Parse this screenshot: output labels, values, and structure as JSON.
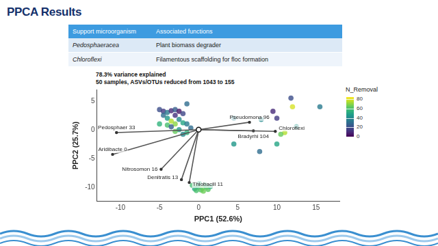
{
  "slide_title": "PPCA Results",
  "table": {
    "header": [
      "Support microorganism",
      "Associated functions"
    ],
    "rows": [
      [
        "Pedosphaeracea",
        "Plant biomass degrader"
      ],
      [
        "Chloroflexi",
        "Filamentous scaffolding for floc formation"
      ]
    ]
  },
  "chart_data": {
    "type": "scatter",
    "annotations": [
      "78.3% variance explained",
      "50 samples, ASVs/OTUs reduced from 1043 to 155"
    ],
    "x_label": "PPC1 (52.6%)",
    "y_label": "PPC2 (25.7%)",
    "xlim": [
      -13,
      18
    ],
    "ylim": [
      -12.5,
      7
    ],
    "xticks": [
      -10,
      -5,
      0,
      5,
      10,
      15
    ],
    "yticks": [
      -10,
      -5,
      0,
      5
    ],
    "grid": false,
    "x": [
      -5,
      -4.5,
      -4,
      -3.5,
      -3,
      -2.5,
      -4.5,
      -4,
      -3.5,
      -3,
      -2.5,
      -2,
      -1.5,
      -4,
      -3.5,
      -2.5,
      -1.5,
      -3,
      -2,
      -1,
      -5,
      -3,
      -2,
      -1.5,
      11.8,
      12,
      15.5,
      9.5,
      8,
      10,
      12.5,
      11,
      10.5,
      10,
      7.8,
      4.5,
      4.5,
      -0.2,
      0,
      0.5,
      1,
      0.3,
      -0.5,
      0.8,
      1.2,
      0.1,
      -0.3,
      0.6,
      1.5,
      -0.8
    ],
    "y": [
      3.5,
      3.2,
      3,
      3.3,
      3.5,
      3.2,
      2.5,
      2,
      1.5,
      1,
      1.8,
      1.2,
      1,
      0.8,
      0.5,
      0,
      -0.5,
      -0.3,
      -0.8,
      0.3,
      1,
      2.5,
      2.8,
      4.5,
      5.5,
      4,
      4,
      3.2,
      1.8,
      2,
      0.5,
      -0.5,
      -0.8,
      -2.5,
      -3.8,
      -2.5,
      2,
      -9.8,
      -10,
      -10.2,
      -10,
      -10.5,
      -10.3,
      -9.6,
      -10.4,
      -9.4,
      -10.6,
      -10.7,
      -9.9,
      -9.7
    ],
    "N_Removal": [
      20,
      15,
      35,
      10,
      25,
      5,
      30,
      45,
      75,
      70,
      40,
      50,
      35,
      60,
      25,
      45,
      55,
      65,
      40,
      30,
      55,
      12,
      18,
      30,
      20,
      80,
      35,
      10,
      40,
      15,
      45,
      75,
      65,
      50,
      30,
      45,
      38,
      60,
      55,
      65,
      58,
      62,
      50,
      57,
      63,
      52,
      60,
      66,
      54,
      59
    ],
    "colorbar": {
      "title": "N_Removal",
      "range": [
        0,
        85
      ],
      "ticks": [
        0,
        20,
        40,
        60,
        80
      ]
    },
    "loadings": [
      {
        "label": "Pseudomona 96",
        "x": 6.5,
        "y": 1.3
      },
      {
        "label": "Bradyrhi 104",
        "x": 7,
        "y": -0.2
      },
      {
        "label": "Chloroflexi",
        "x": 9.8,
        "y": -0.3
      },
      {
        "label": "Pedosphaer 33",
        "x": -10.5,
        "y": -0.5
      },
      {
        "label": "Aridibacte 0",
        "x": -11,
        "y": -4.3
      },
      {
        "label": "Nitrosomon 16",
        "x": -4.8,
        "y": -6.9
      },
      {
        "label": "Denitratis 13",
        "x": -2.2,
        "y": -8.7
      },
      {
        "label": "Thiobacill 11",
        "x": -1.2,
        "y": -9.2
      }
    ]
  }
}
